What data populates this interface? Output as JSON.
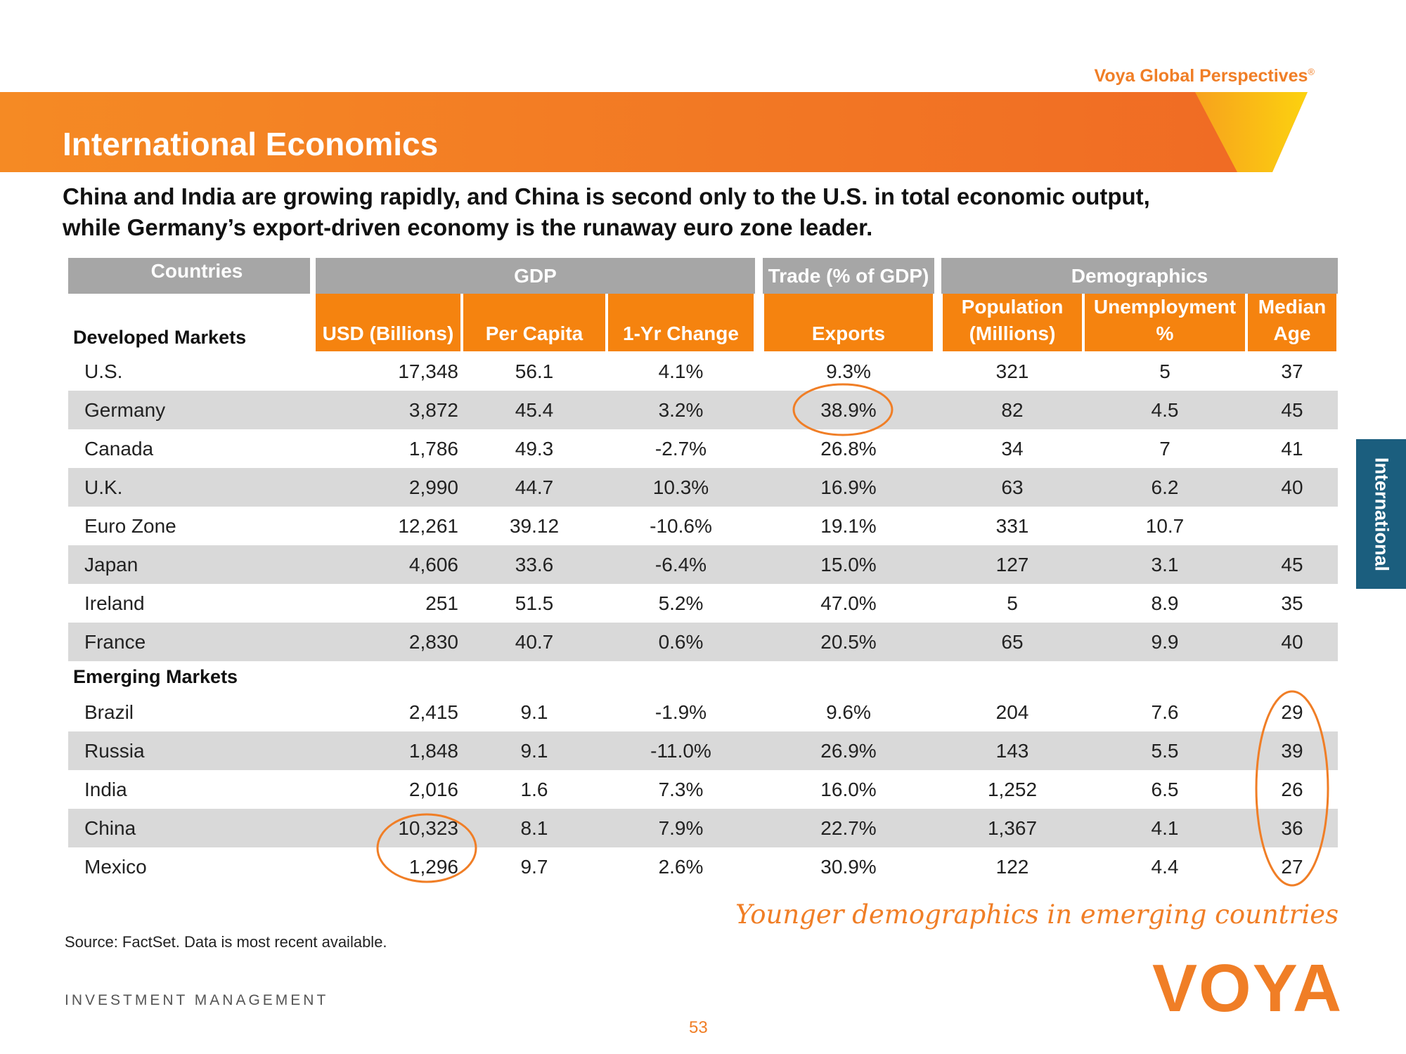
{
  "header": {
    "brand": "Voya Global Perspectives",
    "brand_mark": "®",
    "title": "International Economics",
    "subtitle": [
      "China and India are growing rapidly, and China is second only to the U.S. in total economic output,",
      "while Germany’s export-driven economy is the runaway euro zone leader."
    ]
  },
  "side_tab": "International",
  "table": {
    "group_headers": [
      "Countries",
      "GDP",
      "Trade (% of GDP)",
      "Demographics"
    ],
    "columns": [
      [
        "USD (Billions)"
      ],
      [
        "Per  Capita"
      ],
      [
        "1-Yr Change"
      ],
      [
        "Exports"
      ],
      [
        "Population",
        "(Millions)"
      ],
      [
        "Unemployment",
        "%"
      ],
      [
        "Median",
        "Age"
      ]
    ],
    "sections": [
      {
        "label": "Developed Markets",
        "rows": [
          [
            "U.S.",
            "17,348",
            "56.1",
            "4.1%",
            "9.3%",
            "321",
            "5",
            "37"
          ],
          [
            "Germany",
            "3,872",
            "45.4",
            "3.2%",
            "38.9%",
            "82",
            "4.5",
            "45"
          ],
          [
            "Canada",
            "1,786",
            "49.3",
            "-2.7%",
            "26.8%",
            "34",
            "7",
            "41"
          ],
          [
            "U.K.",
            "2,990",
            "44.7",
            "10.3%",
            "16.9%",
            "63",
            "6.2",
            "40"
          ],
          [
            "Euro Zone",
            "12,261",
            "39.12",
            "-10.6%",
            "19.1%",
            "331",
            "10.7",
            null
          ],
          [
            "Japan",
            "4,606",
            "33.6",
            "-6.4%",
            "15.0%",
            "127",
            "3.1",
            "45"
          ],
          [
            "Ireland",
            "251",
            "51.5",
            "5.2%",
            "47.0%",
            "5",
            "8.9",
            "35"
          ],
          [
            "France",
            "2,830",
            "40.7",
            "0.6%",
            "20.5%",
            "65",
            "9.9",
            "40"
          ]
        ]
      },
      {
        "label": "Emerging Markets",
        "rows": [
          [
            "Brazil",
            "2,415",
            "9.1",
            "-1.9%",
            "9.6%",
            "204",
            "7.6",
            "29"
          ],
          [
            "Russia",
            "1,848",
            "9.1",
            "-11.0%",
            "26.9%",
            "143",
            "5.5",
            "39"
          ],
          [
            "India",
            "2,016",
            "1.6",
            "7.3%",
            "16.0%",
            "1,252",
            "6.5",
            "26"
          ],
          [
            "China",
            "10,323",
            "8.1",
            "7.9%",
            "22.7%",
            "1,367",
            "4.1",
            "36"
          ],
          [
            "Mexico",
            "1,296",
            "9.7",
            "2.6%",
            "30.9%",
            "122",
            "4.4",
            "27"
          ]
        ]
      }
    ]
  },
  "annotation": "Younger demographics in emerging countries",
  "source": "Source: FactSet. Data is most recent available.",
  "footer": {
    "division": "INVESTMENT MANAGEMENT",
    "logo": "VOYA",
    "page": "53"
  }
}
